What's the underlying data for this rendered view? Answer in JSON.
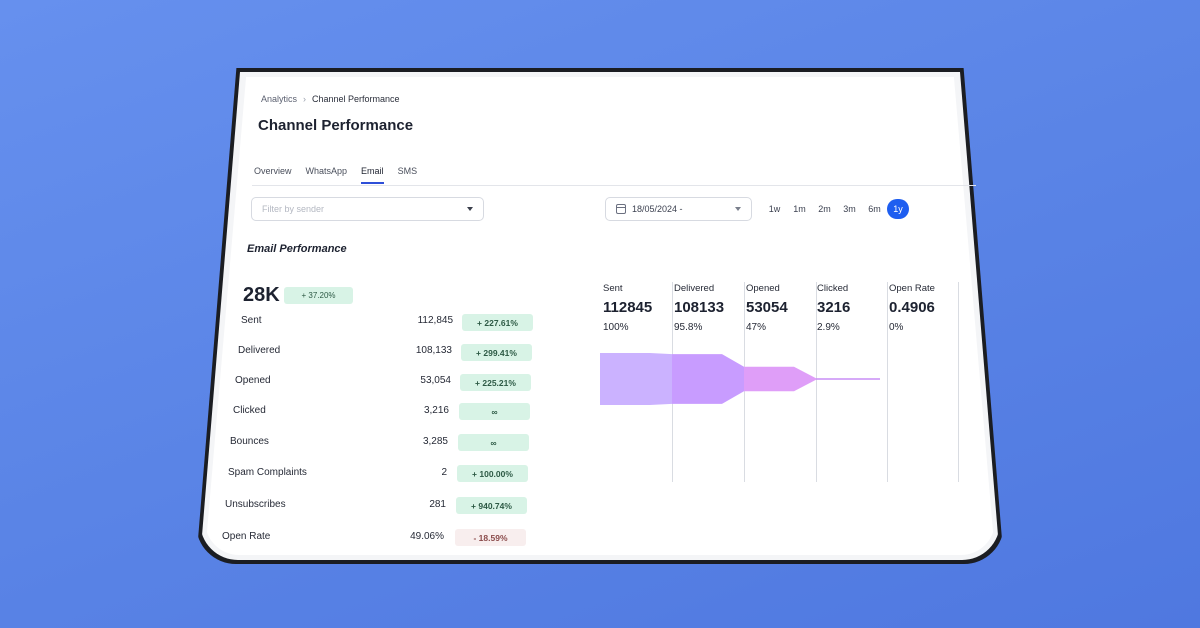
{
  "breadcrumb": {
    "root": "Analytics",
    "current": "Channel Performance"
  },
  "page_title": "Channel Performance",
  "tabs": [
    {
      "label": "Overview",
      "active": false
    },
    {
      "label": "WhatsApp",
      "active": false
    },
    {
      "label": "Email",
      "active": true
    },
    {
      "label": "SMS",
      "active": false
    }
  ],
  "filter": {
    "placeholder": "Filter by sender"
  },
  "date": {
    "value": "18/05/2024 -"
  },
  "ranges": [
    {
      "label": "1w",
      "active": false
    },
    {
      "label": "1m",
      "active": false
    },
    {
      "label": "2m",
      "active": false
    },
    {
      "label": "3m",
      "active": false
    },
    {
      "label": "6m",
      "active": false
    },
    {
      "label": "1y",
      "active": true
    }
  ],
  "section_title": "Email Performance",
  "summary": {
    "total": "28K",
    "change": "+ 37.20%"
  },
  "metrics": [
    {
      "label": "Sent",
      "value": "112,845",
      "change": "+ 227.61%",
      "negative": false
    },
    {
      "label": "Delivered",
      "value": "108,133",
      "change": "+ 299.41%",
      "negative": false
    },
    {
      "label": "Opened",
      "value": "53,054",
      "change": "+ 225.21%",
      "negative": false
    },
    {
      "label": "Clicked",
      "value": "3,216",
      "change": "∞",
      "negative": false
    },
    {
      "label": "Bounces",
      "value": "3,285",
      "change": "∞",
      "negative": false
    },
    {
      "label": "Spam Complaints",
      "value": "2",
      "change": "+ 100.00%",
      "negative": false
    },
    {
      "label": "Unsubscribes",
      "value": "281",
      "change": "+ 940.74%",
      "negative": false
    },
    {
      "label": "Open Rate",
      "value": "49.06%",
      "change": "- 18.59%",
      "negative": true
    }
  ],
  "funnel": [
    {
      "label": "Sent",
      "value": "112845",
      "pct": "100%",
      "fraction": 1.0,
      "color": "#cbb2ff"
    },
    {
      "label": "Delivered",
      "value": "108133",
      "pct": "95.8%",
      "fraction": 0.958,
      "color": "#c89cff"
    },
    {
      "label": "Opened",
      "value": "53054",
      "pct": "47%",
      "fraction": 0.47,
      "color": "#df9ef8"
    },
    {
      "label": "Clicked",
      "value": "3216",
      "pct": "2.9%",
      "fraction": 0.029,
      "color": "#c98df5"
    },
    {
      "label": "Open Rate",
      "value": "0.4906",
      "pct": "0%",
      "fraction": 0.0,
      "color": "#c98df5"
    }
  ]
}
